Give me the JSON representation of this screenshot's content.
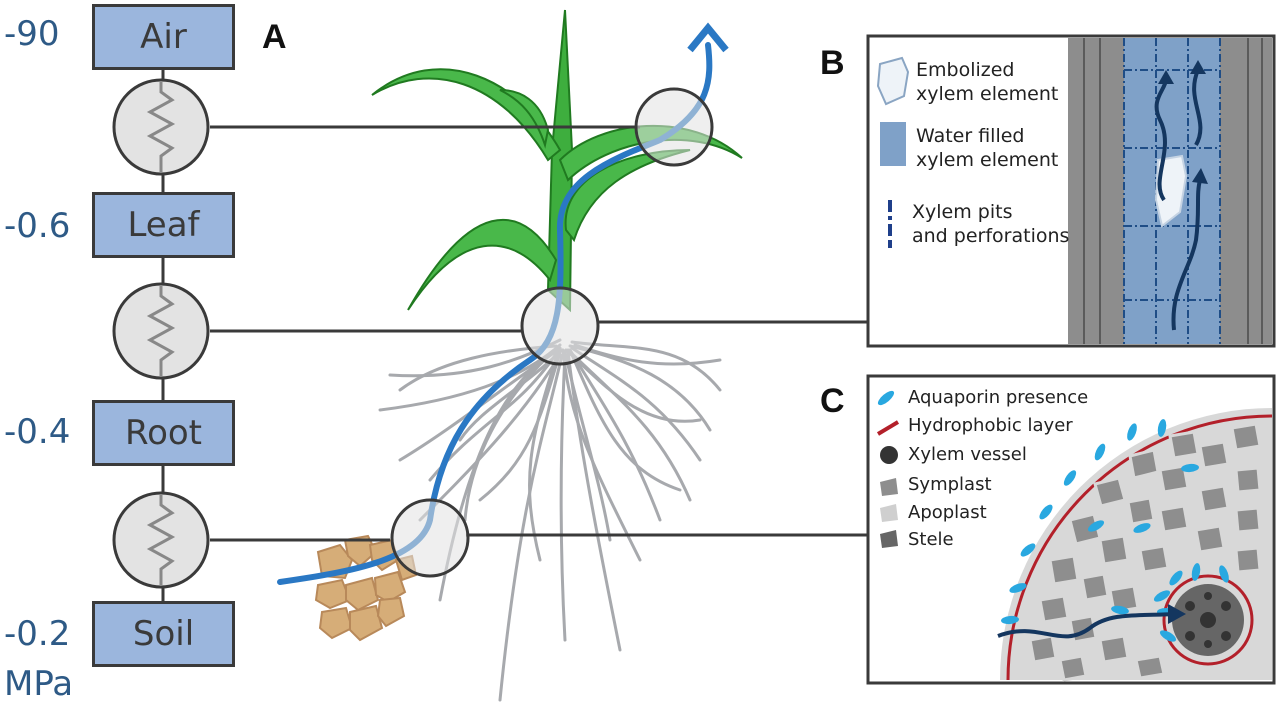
{
  "scale": {
    "labels": [
      "-90",
      "-0.6",
      "-0.4",
      "-0.2"
    ],
    "unit": "MPa"
  },
  "compartments": [
    "Air",
    "Leaf",
    "Root",
    "Soil"
  ],
  "panels": {
    "a": "A",
    "b": "B",
    "c": "C"
  },
  "panel_b": {
    "legend": {
      "embolized_line1": "Embolized",
      "embolized_line2": "xylem element",
      "water_line1": "Water filled",
      "water_line2": "xylem element",
      "pits_line1": "Xylem pits",
      "pits_line2": "and perforations"
    }
  },
  "panel_c": {
    "legend": {
      "aquaporin": "Aquaporin presence",
      "hydrophobic": "Hydrophobic layer",
      "xylem_vessel": "Xylem vessel",
      "symplast": "Symplast",
      "apoplast": "Apoplast",
      "stele": "Stele"
    }
  },
  "colors": {
    "box_fill": "#9bb6dd",
    "water_flow": "#2a78c4",
    "leaf_green": "#3eae3e",
    "root_gray": "#a7a9ad",
    "soil_tan": "#c9a06a",
    "label_blue": "#2e5a86",
    "hydrophobic_red": "#b3202a",
    "aquaporin_blue": "#29a8e0"
  }
}
